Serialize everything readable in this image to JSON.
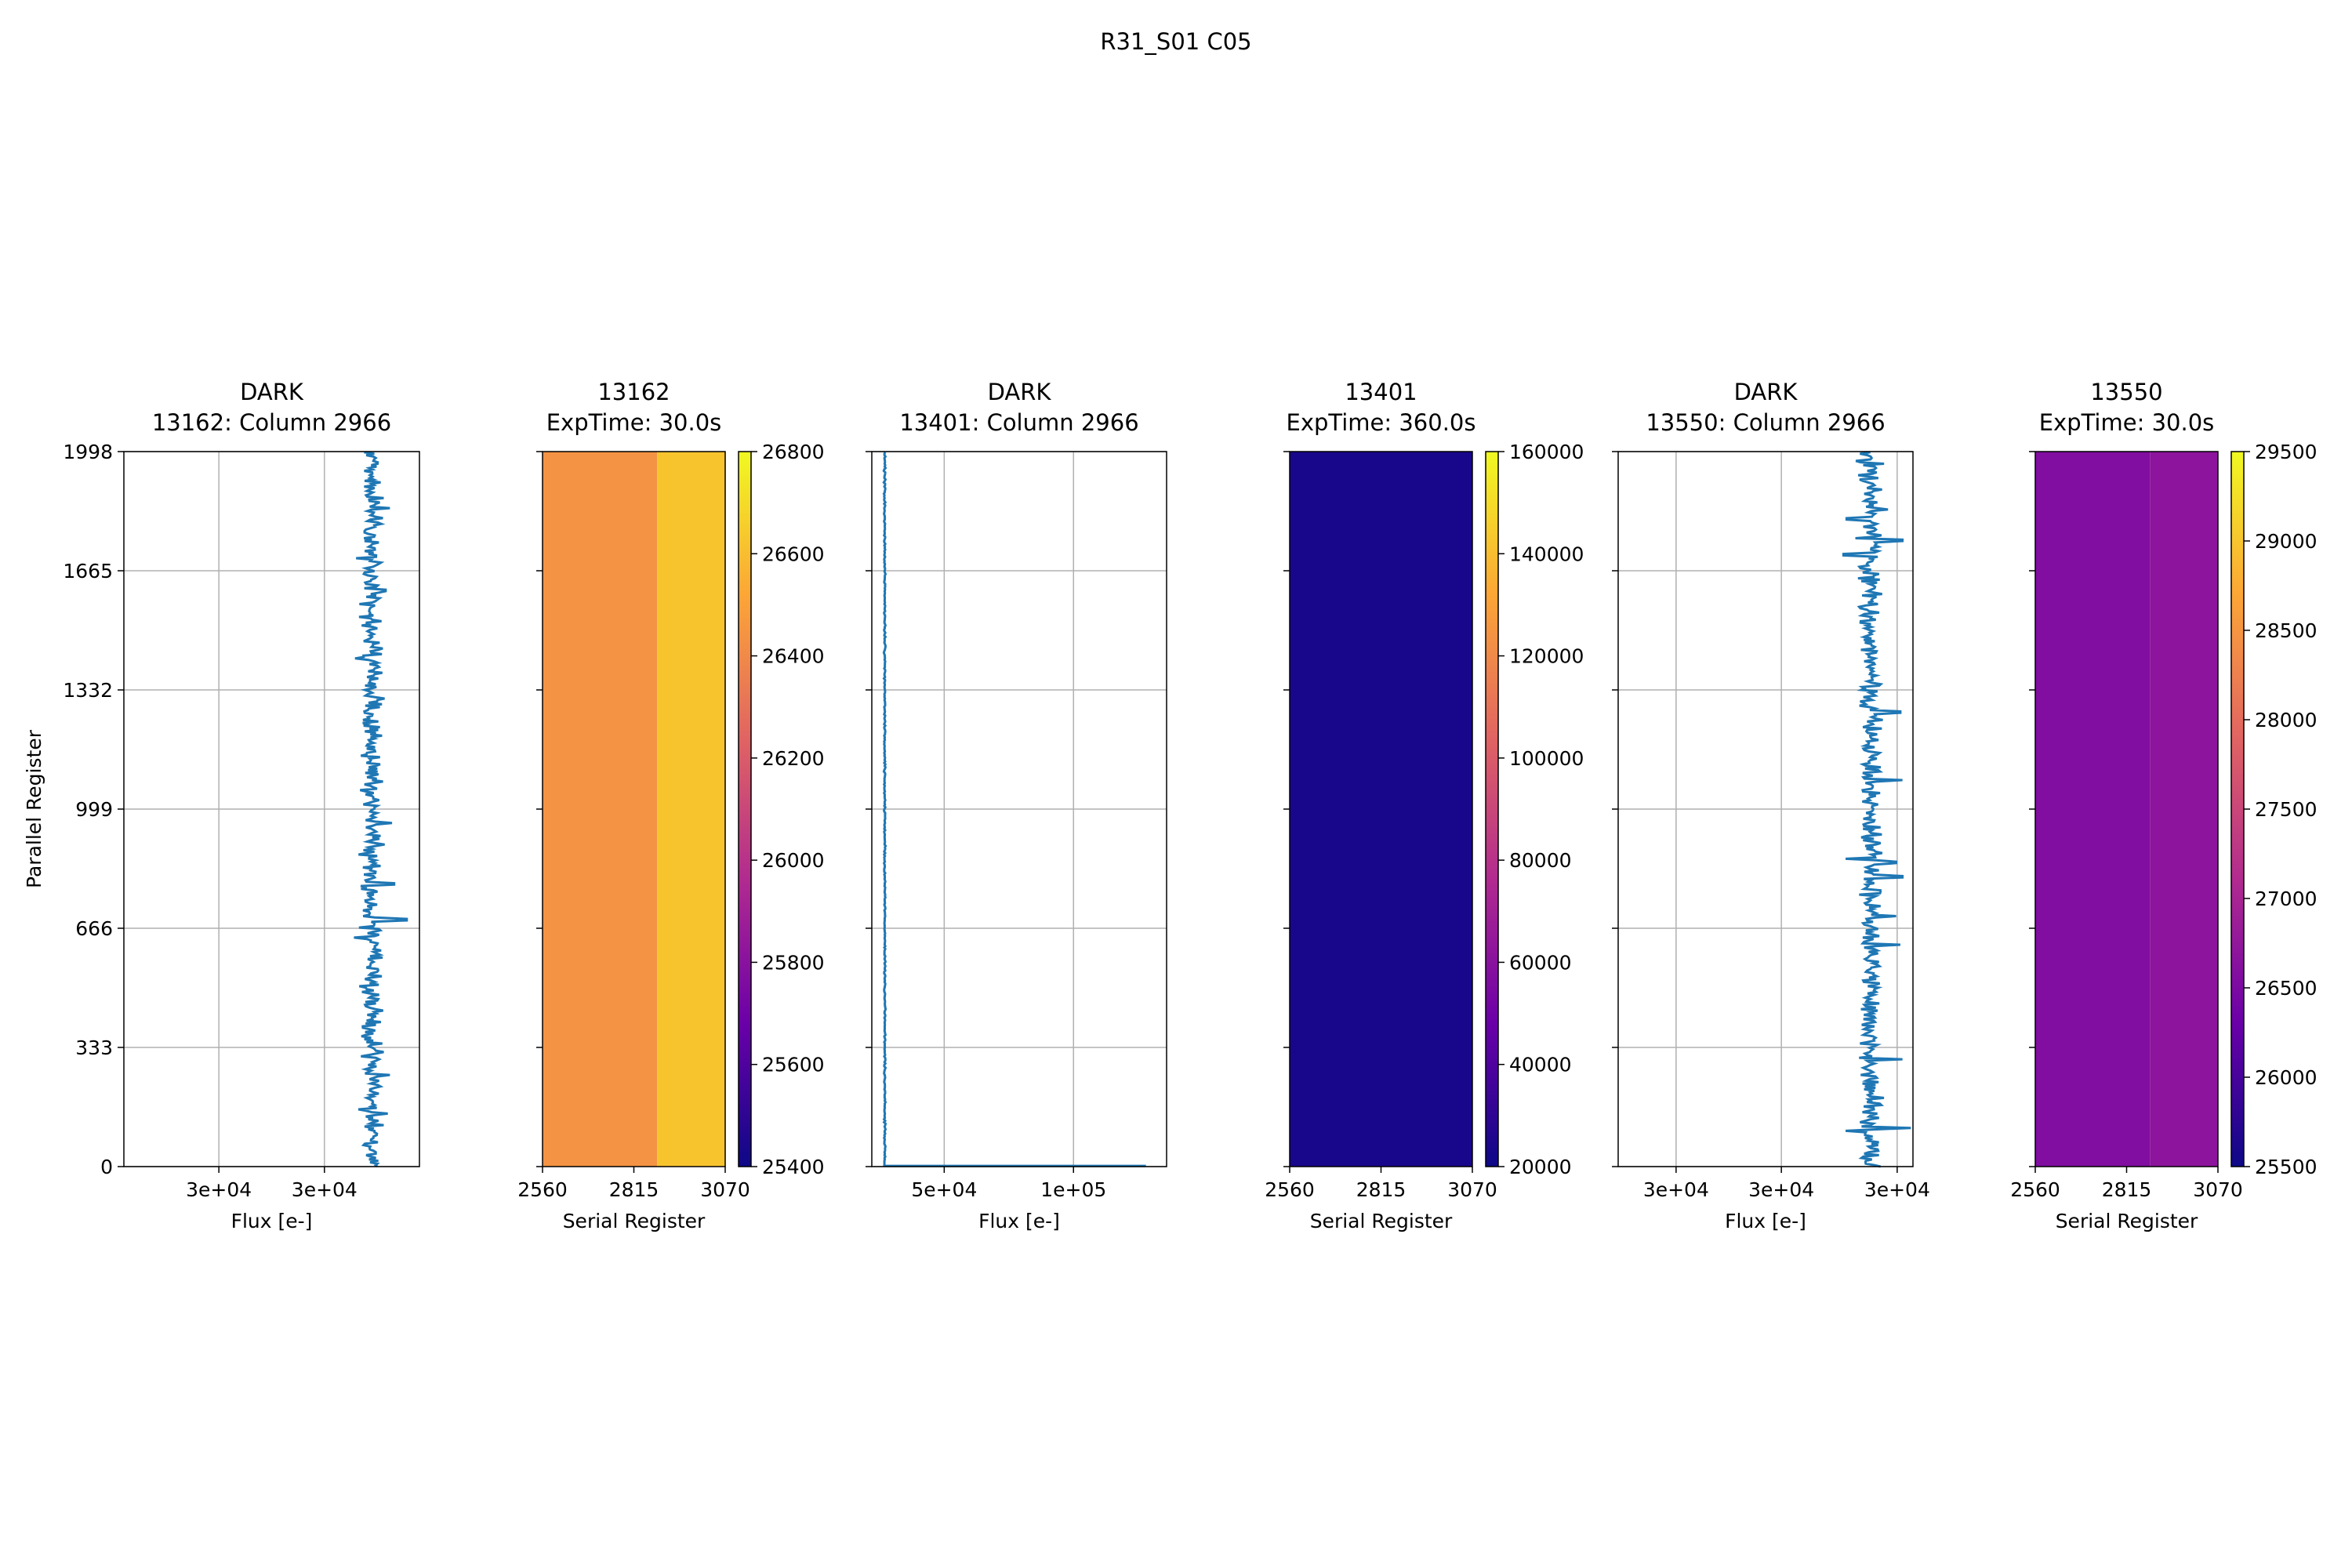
{
  "figure": {
    "title": "R31_S01 C05"
  },
  "colors": {
    "profile_line": "#1f77b4",
    "grid": "#b0b0b0",
    "plasma_stops": [
      "#0d0887",
      "#6a00a8",
      "#b12a90",
      "#e16462",
      "#fca636",
      "#f0f921"
    ]
  },
  "chart_data": [
    {
      "type": "line",
      "title_line1": "DARK",
      "title_line2": "13162: Column 2966",
      "xlabel": "Flux [e-]",
      "ylabel": "Parallel Register",
      "xlim": [
        29830,
        30110
      ],
      "ylim": [
        0,
        1998
      ],
      "xticks": [
        29920,
        30020
      ],
      "xtick_labels": [
        "3e+04",
        "3e+04"
      ],
      "yticks": [
        0,
        333,
        666,
        999,
        1332,
        1665,
        1998
      ],
      "ytick_labels": [
        "0",
        "333",
        "666",
        "999",
        "1332",
        "1665",
        "1998"
      ],
      "grid": true,
      "profile": {
        "center": 30065,
        "noise": 7,
        "outliers": [
          [
            1840,
            30082
          ],
          [
            1700,
            30050
          ],
          [
            1610,
            30078
          ],
          [
            1420,
            30049
          ],
          [
            960,
            30084
          ],
          [
            790,
            30086
          ],
          [
            690,
            30098
          ],
          [
            640,
            30048
          ],
          [
            505,
            30053
          ],
          [
            255,
            30082
          ],
          [
            148,
            30080
          ]
        ]
      }
    },
    {
      "type": "heatmap",
      "title_line1": "13162",
      "title_line2": "ExpTime: 30.0s",
      "xlabel": "Serial Register",
      "xlim": [
        2560,
        3070
      ],
      "ylim": [
        0,
        1998
      ],
      "xticks": [
        2560,
        2815,
        3070
      ],
      "xtick_labels": [
        "2560",
        "2815",
        "3070"
      ],
      "columns": [
        {
          "x_start": 2560,
          "x_end": 2880,
          "value": 26440
        },
        {
          "x_start": 2880,
          "x_end": 3070,
          "value": 26620
        }
      ],
      "colorbar": {
        "min": 25400,
        "max": 26800,
        "ticks": [
          25400,
          25600,
          25800,
          26000,
          26200,
          26400,
          26600,
          26800
        ],
        "tick_labels": [
          "25400",
          "25600",
          "25800",
          "26000",
          "26200",
          "26400",
          "26600",
          "26800"
        ]
      }
    },
    {
      "type": "line",
      "title_line1": "DARK",
      "title_line2": "13401: Column 2966",
      "xlabel": "Flux [e-]",
      "xlim": [
        22000,
        136000
      ],
      "ylim": [
        0,
        1998
      ],
      "xticks": [
        50000,
        100000
      ],
      "xtick_labels": [
        "5e+04",
        "1e+05"
      ],
      "yticks": [
        0,
        333,
        666,
        999,
        1332,
        1665,
        1998
      ],
      "grid": true,
      "profile": {
        "center": 27000,
        "noise": 200,
        "tail_x_end": 128000,
        "tail_row": 2
      }
    },
    {
      "type": "heatmap",
      "title_line1": "13401",
      "title_line2": "ExpTime: 360.0s",
      "xlabel": "Serial Register",
      "xlim": [
        2560,
        3070
      ],
      "ylim": [
        0,
        1998
      ],
      "xticks": [
        2560,
        2815,
        3070
      ],
      "xtick_labels": [
        "2560",
        "2815",
        "3070"
      ],
      "columns": [
        {
          "x_start": 2560,
          "x_end": 3070,
          "value": 23200
        }
      ],
      "colorbar": {
        "min": 20000,
        "max": 160000,
        "ticks": [
          20000,
          40000,
          60000,
          80000,
          100000,
          120000,
          140000,
          160000
        ],
        "tick_labels": [
          "20000",
          "40000",
          "60000",
          "80000",
          "100000",
          "120000",
          "140000",
          "160000"
        ]
      }
    },
    {
      "type": "line",
      "title_line1": "DARK",
      "title_line2": "13550: Column 2966",
      "xlabel": "Flux [e-]",
      "xlim": [
        29840,
        30120
      ],
      "ylim": [
        0,
        1998
      ],
      "xticks": [
        29895,
        29995,
        30105
      ],
      "xtick_labels": [
        "3e+04",
        "3e+04",
        "3e+04"
      ],
      "yticks": [
        0,
        333,
        666,
        999,
        1332,
        1665,
        1998
      ],
      "grid": true,
      "profile": {
        "center": 30080,
        "noise": 8,
        "outliers": [
          [
            1810,
            30057
          ],
          [
            1750,
            30110
          ],
          [
            1710,
            30054
          ],
          [
            1270,
            30108
          ],
          [
            1080,
            30110
          ],
          [
            860,
            30056
          ],
          [
            850,
            30104
          ],
          [
            810,
            30110
          ],
          [
            700,
            30104
          ],
          [
            620,
            30108
          ],
          [
            300,
            30110
          ],
          [
            108,
            30118
          ],
          [
            100,
            30056
          ]
        ]
      }
    },
    {
      "type": "heatmap",
      "title_line1": "13550",
      "title_line2": "ExpTime: 30.0s",
      "xlabel": "Serial Register",
      "xlim": [
        2560,
        3070
      ],
      "ylim": [
        0,
        1998
      ],
      "xticks": [
        2560,
        2815,
        3070
      ],
      "xtick_labels": [
        "2560",
        "2815",
        "3070"
      ],
      "columns": [
        {
          "x_start": 2560,
          "x_end": 2880,
          "value": 26560
        },
        {
          "x_start": 2880,
          "x_end": 3070,
          "value": 26690
        }
      ],
      "colorbar": {
        "min": 25500,
        "max": 29500,
        "ticks": [
          25500,
          26000,
          26500,
          27000,
          27500,
          28000,
          28500,
          29000,
          29500
        ],
        "tick_labels": [
          "25500",
          "26000",
          "26500",
          "27000",
          "27500",
          "28000",
          "28500",
          "29000",
          "29500"
        ]
      }
    }
  ]
}
